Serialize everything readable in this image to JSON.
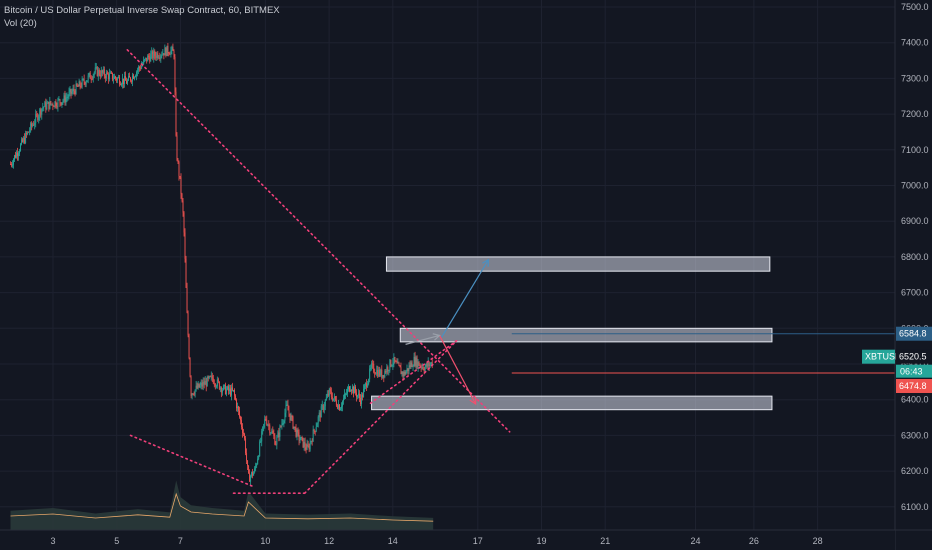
{
  "chart_data": {
    "type": "candlestick",
    "title": "Bitcoin / US Dollar Perpetual Inverse Swap Contract, 60, BITMEX",
    "indicator": "Vol (20)",
    "yaxis": {
      "range": [
        6020,
        7520
      ],
      "ticks": [
        "7500.0",
        "7400.0",
        "7300.0",
        "7200.0",
        "7100.0",
        "7000.0",
        "6900.0",
        "6800.0",
        "6700.0",
        "6600.0",
        "6500.0",
        "6400.0",
        "6300.0",
        "6200.0",
        "6100.0"
      ]
    },
    "xaxis": {
      "ticks": [
        "3",
        "5",
        "7",
        "10",
        "12",
        "14",
        "17",
        "19",
        "21",
        "24",
        "26",
        "28"
      ]
    },
    "price_tags": [
      {
        "label": "6584.8",
        "value": 6584.8,
        "color": "#2c5f87"
      },
      {
        "symbol": "XBTUSD",
        "label": "6520.5",
        "value": 6520.5,
        "color": "#26a69a",
        "countdown": "06:43"
      },
      {
        "label": "6474.8",
        "value": 6474.8,
        "color": "#ef5350"
      }
    ],
    "price_path": [
      [
        0,
        7060
      ],
      [
        3,
        7220
      ],
      [
        5,
        7240
      ],
      [
        8,
        7320
      ],
      [
        11,
        7290
      ],
      [
        13,
        7360
      ],
      [
        15,
        7380
      ],
      [
        15.4,
        7370
      ],
      [
        15.6,
        7100
      ],
      [
        16,
        7000
      ],
      [
        16.3,
        6900
      ],
      [
        16.6,
        6650
      ],
      [
        17,
        6420
      ],
      [
        18,
        6440
      ],
      [
        19,
        6460
      ],
      [
        20,
        6430
      ],
      [
        21,
        6420
      ],
      [
        22,
        6300
      ],
      [
        22.4,
        6180
      ],
      [
        23,
        6200
      ],
      [
        24,
        6350
      ],
      [
        25,
        6280
      ],
      [
        26,
        6380
      ],
      [
        27,
        6300
      ],
      [
        28,
        6260
      ],
      [
        29,
        6350
      ],
      [
        30,
        6420
      ],
      [
        31,
        6380
      ],
      [
        32,
        6440
      ],
      [
        33,
        6400
      ],
      [
        34,
        6490
      ],
      [
        35,
        6470
      ],
      [
        36,
        6510
      ],
      [
        37,
        6470
      ],
      [
        38,
        6510
      ],
      [
        39,
        6490
      ],
      [
        39.8,
        6505
      ]
    ],
    "volume_path": [
      [
        0,
        0.35
      ],
      [
        4,
        0.4
      ],
      [
        8,
        0.3
      ],
      [
        12,
        0.38
      ],
      [
        15,
        0.32
      ],
      [
        15.6,
        0.9
      ],
      [
        16,
        0.6
      ],
      [
        17,
        0.45
      ],
      [
        19,
        0.4
      ],
      [
        22,
        0.35
      ],
      [
        22.4,
        0.7
      ],
      [
        24,
        0.3
      ],
      [
        28,
        0.28
      ],
      [
        32,
        0.3
      ],
      [
        36,
        0.25
      ],
      [
        39.8,
        0.22
      ]
    ],
    "drawings": {
      "zones": [
        {
          "from_x": 35.4,
          "to_x": 71.5,
          "top": 6800,
          "bottom": 6760
        },
        {
          "from_x": 36.7,
          "to_x": 71.7,
          "top": 6600,
          "bottom": 6562
        },
        {
          "from_x": 34.0,
          "to_x": 71.7,
          "top": 6410,
          "bottom": 6372
        }
      ],
      "hlines": [
        {
          "from_x": 47.2,
          "to_x": 80,
          "value": 6584.8,
          "color": "#2c5f87"
        },
        {
          "from_x": 47.2,
          "to_x": 80,
          "value": 6474.8,
          "color": "#ef5350"
        }
      ],
      "dotted_lines": [
        [
          [
            11,
            7380
          ],
          [
            47,
            6310
          ]
        ],
        [
          [
            11.3,
            6300
          ],
          [
            23,
            6155
          ]
        ],
        [
          [
            21,
            6138
          ],
          [
            27.7,
            6138
          ]
        ],
        [
          [
            27.7,
            6138
          ],
          [
            42,
            6565
          ]
        ],
        [
          [
            33.9,
            6390
          ],
          [
            42,
            6565
          ]
        ]
      ],
      "arrows": [
        {
          "from": [
            40.6,
            6575
          ],
          "to": [
            45,
            6792
          ],
          "color": "#4a90c2"
        },
        {
          "from": [
            40.4,
            6580
          ],
          "to": [
            43.8,
            6388
          ],
          "color": "#f0506e"
        },
        {
          "from": [
            37.2,
            6555
          ],
          "to": [
            40.4,
            6580
          ],
          "color": "#9aa0aa"
        }
      ]
    }
  }
}
